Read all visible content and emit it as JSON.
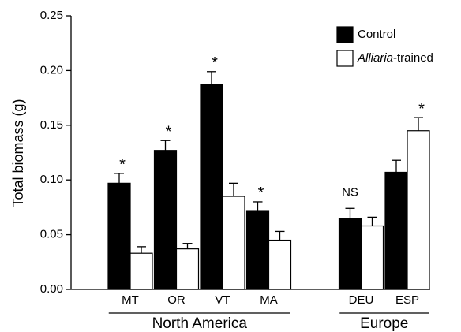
{
  "chart_data": {
    "type": "bar",
    "ylabel": "Total biomass (g)",
    "categories": [
      "MT",
      "OR",
      "VT",
      "MA",
      "DEU",
      "ESP"
    ],
    "series": [
      {
        "name": "Control",
        "color": "#000000",
        "values": [
          0.097,
          0.127,
          0.187,
          0.072,
          0.065,
          0.107
        ],
        "errors": [
          0.009,
          0.009,
          0.012,
          0.008,
          0.009,
          0.011
        ]
      },
      {
        "name": "Alliaria-trained",
        "color": "#ffffff",
        "values": [
          0.033,
          0.037,
          0.085,
          0.045,
          0.058,
          0.145
        ],
        "errors": [
          0.006,
          0.005,
          0.012,
          0.008,
          0.008,
          0.012
        ]
      }
    ],
    "annotations": [
      "*",
      "*",
      "*",
      "*",
      "NS",
      "*"
    ],
    "groups": [
      {
        "label": "North America",
        "members": [
          "MT",
          "OR",
          "VT",
          "MA"
        ]
      },
      {
        "label": "Europe",
        "members": [
          "DEU",
          "ESP"
        ]
      }
    ],
    "ylim": [
      0,
      0.25
    ],
    "yticks": [
      {
        "value": 0,
        "label": "0.00"
      },
      {
        "value": 0.05,
        "label": "0.05"
      },
      {
        "value": 0.1,
        "label": "0.10"
      },
      {
        "value": 0.15,
        "label": "0.15"
      },
      {
        "value": 0.2,
        "label": "0.20"
      },
      {
        "value": 0.25,
        "label": "0.25"
      }
    ],
    "legend": "top-right"
  }
}
